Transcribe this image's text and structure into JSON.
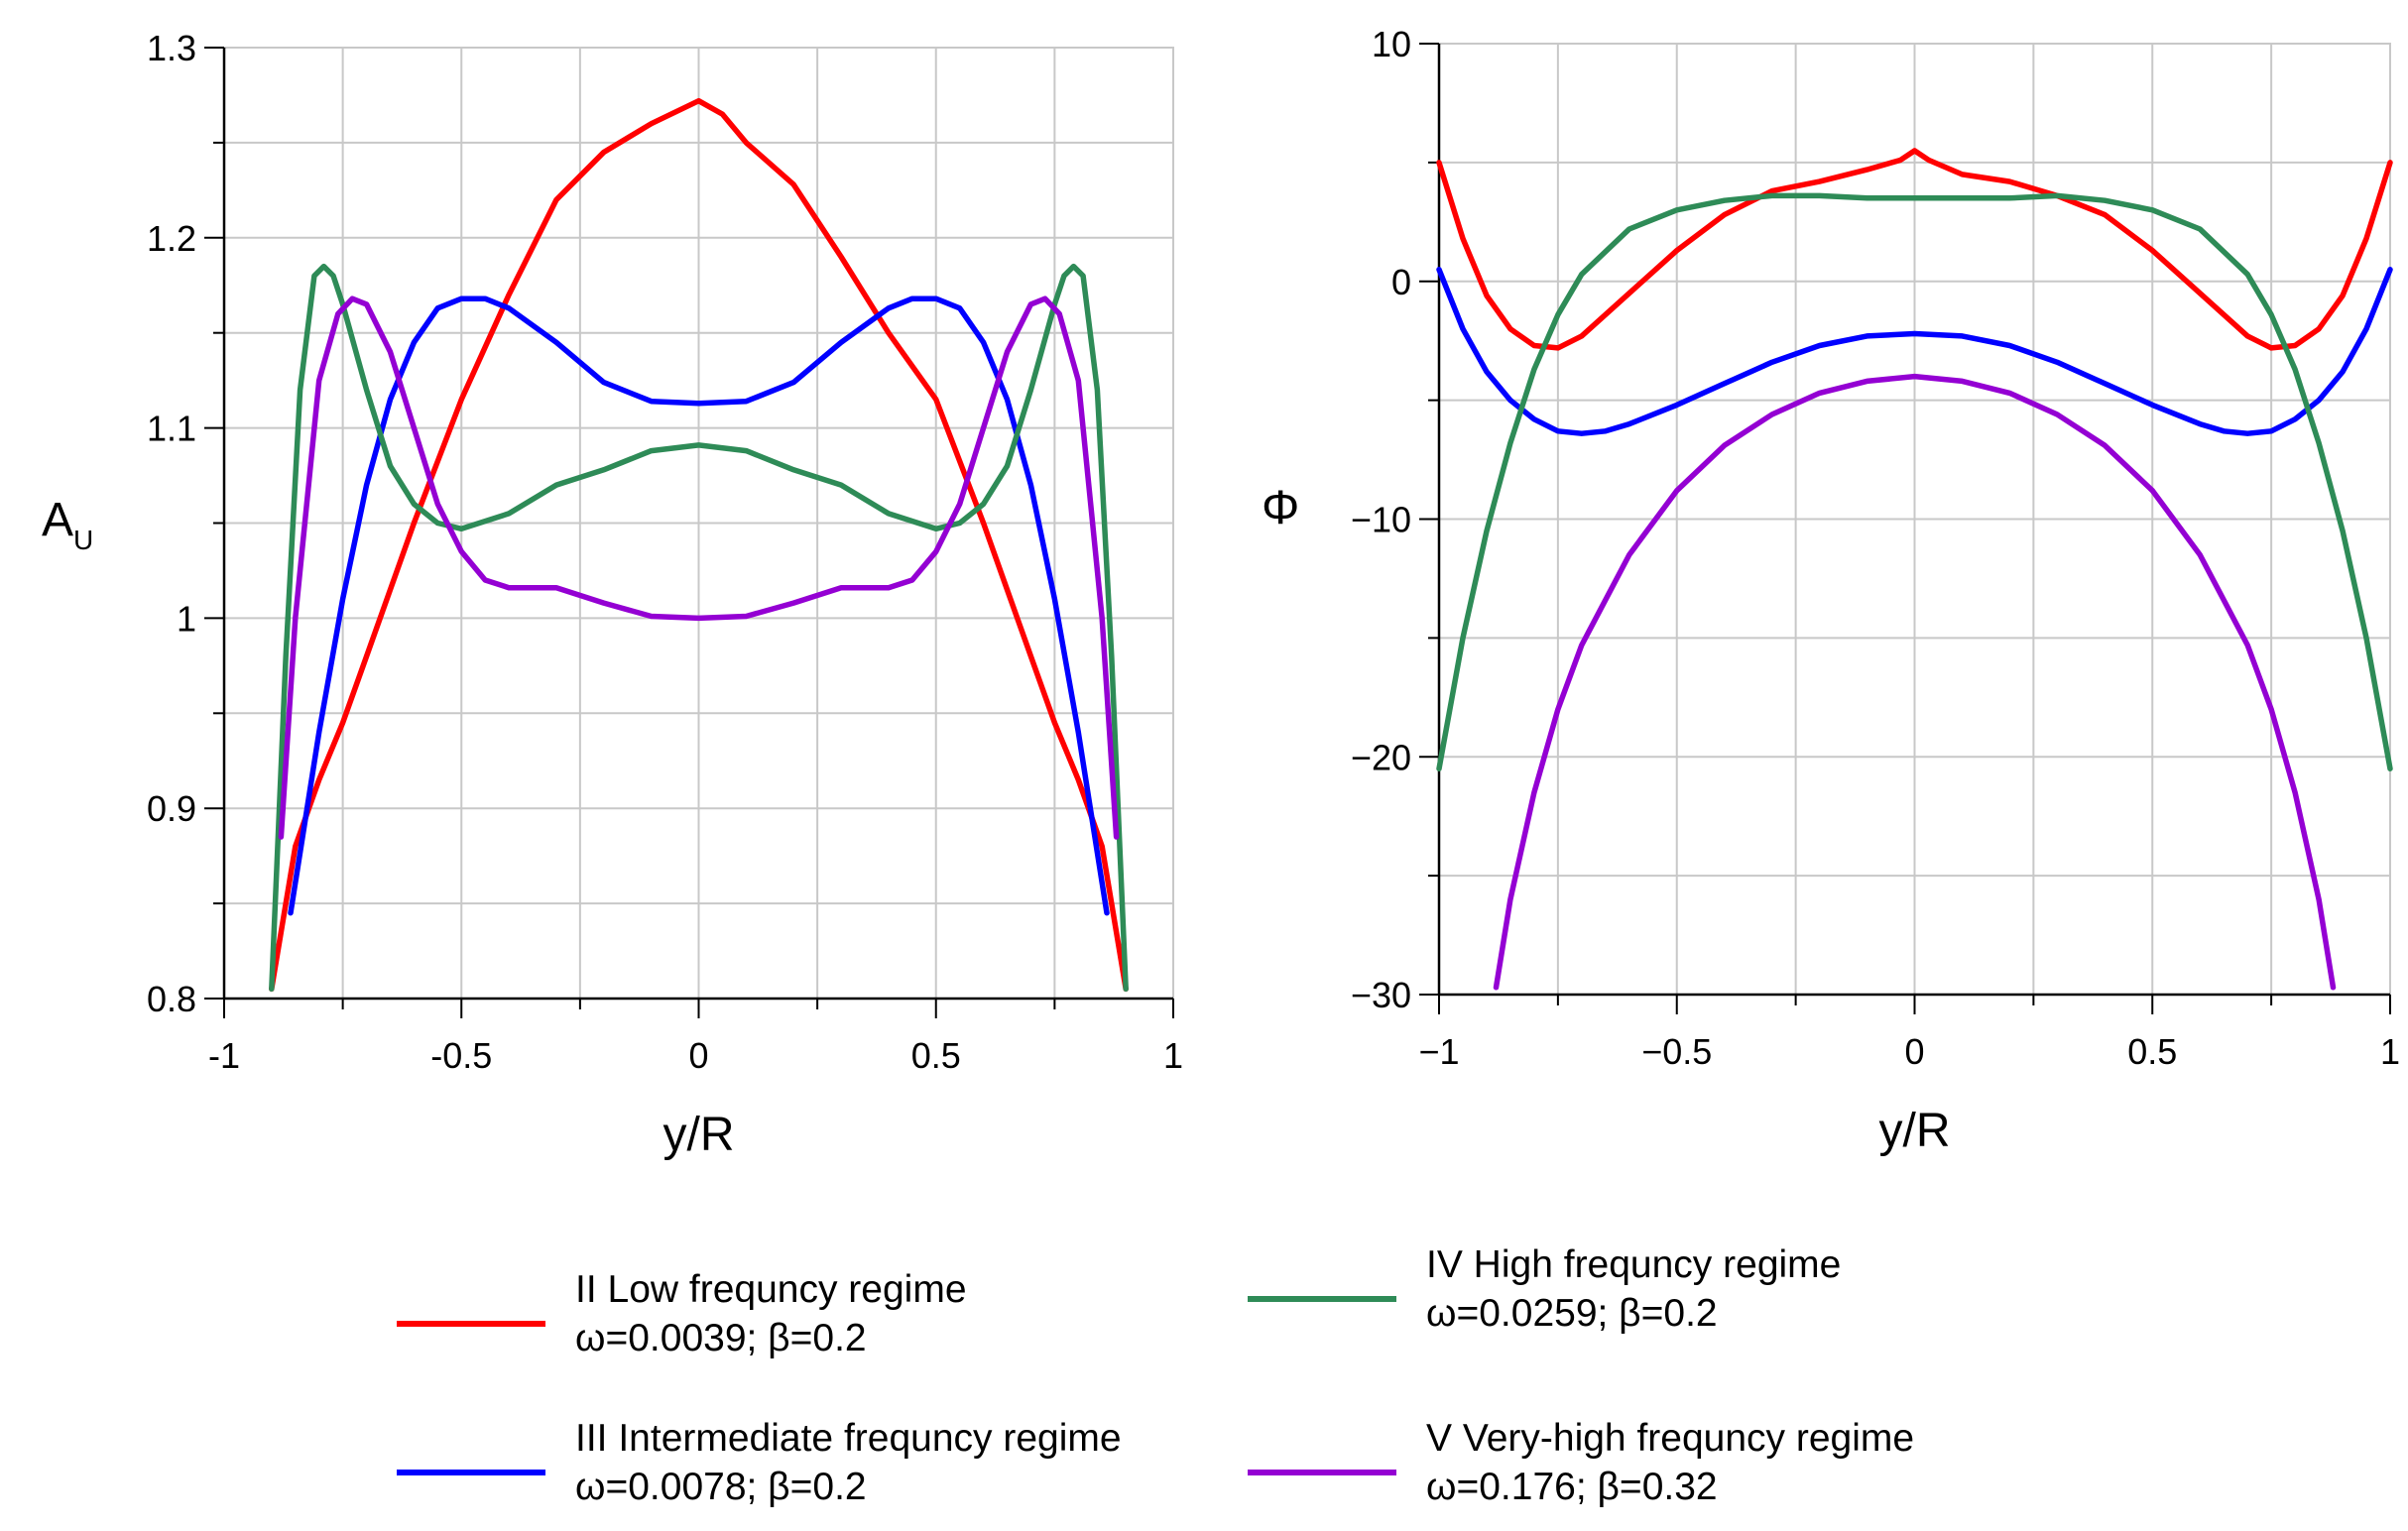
{
  "chart_data": [
    {
      "type": "line",
      "panel": "left",
      "xlabel": "y/R",
      "ylabel_main": "A",
      "ylabel_sub": "U",
      "xlim": [
        -1,
        1
      ],
      "ylim": [
        0.8,
        1.3
      ],
      "xticks": [
        -1,
        -0.5,
        0,
        0.5,
        1
      ],
      "xtick_labels": [
        "-1",
        "-0.5",
        "0",
        "0.5",
        "1"
      ],
      "xminor": [
        -0.75,
        -0.25,
        0.25,
        0.75
      ],
      "yticks": [
        0.8,
        0.9,
        1.0,
        1.1,
        1.2,
        1.3
      ],
      "ytick_labels": [
        "0.8",
        "0.9",
        "1",
        "1.1",
        "1.2",
        "1.3"
      ],
      "yminor": [
        0.85,
        0.95,
        1.05,
        1.15,
        1.25
      ],
      "grid": true,
      "series": [
        {
          "name": "II",
          "color": "#ff0000",
          "x": [
            -0.9,
            -0.85,
            -0.8,
            -0.75,
            -0.7,
            -0.6,
            -0.5,
            -0.4,
            -0.3,
            -0.2,
            -0.1,
            0,
            0.05,
            0.1,
            0.2,
            0.3,
            0.4,
            0.5,
            0.6,
            0.7,
            0.75,
            0.8,
            0.85,
            0.9
          ],
          "y": [
            0.805,
            0.88,
            0.915,
            0.945,
            0.98,
            1.05,
            1.115,
            1.17,
            1.22,
            1.245,
            1.26,
            1.272,
            1.265,
            1.25,
            1.228,
            1.19,
            1.15,
            1.115,
            1.05,
            0.98,
            0.945,
            0.915,
            0.88,
            0.805
          ]
        },
        {
          "name": "III",
          "color": "#0000ff",
          "x": [
            -0.86,
            -0.8,
            -0.75,
            -0.7,
            -0.65,
            -0.6,
            -0.55,
            -0.5,
            -0.45,
            -0.4,
            -0.3,
            -0.2,
            -0.1,
            0,
            0.1,
            0.2,
            0.3,
            0.4,
            0.45,
            0.5,
            0.55,
            0.6,
            0.65,
            0.7,
            0.75,
            0.8,
            0.86
          ],
          "y": [
            0.845,
            0.94,
            1.01,
            1.07,
            1.115,
            1.145,
            1.163,
            1.168,
            1.168,
            1.163,
            1.145,
            1.124,
            1.114,
            1.113,
            1.114,
            1.124,
            1.145,
            1.163,
            1.168,
            1.168,
            1.163,
            1.145,
            1.115,
            1.07,
            1.01,
            0.94,
            0.845
          ]
        },
        {
          "name": "IV",
          "color": "#2e8b57",
          "x": [
            -0.9,
            -0.87,
            -0.84,
            -0.81,
            -0.79,
            -0.77,
            -0.75,
            -0.7,
            -0.65,
            -0.6,
            -0.55,
            -0.5,
            -0.4,
            -0.3,
            -0.2,
            -0.1,
            0,
            0.1,
            0.2,
            0.3,
            0.4,
            0.5,
            0.55,
            0.6,
            0.65,
            0.7,
            0.75,
            0.77,
            0.79,
            0.81,
            0.84,
            0.87,
            0.9
          ],
          "y": [
            0.805,
            0.98,
            1.12,
            1.18,
            1.185,
            1.18,
            1.165,
            1.12,
            1.08,
            1.06,
            1.05,
            1.047,
            1.055,
            1.07,
            1.078,
            1.088,
            1.091,
            1.088,
            1.078,
            1.07,
            1.055,
            1.047,
            1.05,
            1.06,
            1.08,
            1.12,
            1.165,
            1.18,
            1.185,
            1.18,
            1.12,
            0.98,
            0.805
          ]
        },
        {
          "name": "V",
          "color": "#9400d3",
          "x": [
            -0.88,
            -0.85,
            -0.8,
            -0.76,
            -0.73,
            -0.7,
            -0.65,
            -0.6,
            -0.55,
            -0.5,
            -0.45,
            -0.4,
            -0.3,
            -0.2,
            -0.1,
            0,
            0.1,
            0.2,
            0.3,
            0.4,
            0.45,
            0.5,
            0.55,
            0.6,
            0.65,
            0.7,
            0.73,
            0.76,
            0.8,
            0.85,
            0.88
          ],
          "y": [
            0.885,
            1.0,
            1.125,
            1.16,
            1.168,
            1.165,
            1.14,
            1.1,
            1.06,
            1.035,
            1.02,
            1.016,
            1.016,
            1.008,
            1.001,
            1.0,
            1.001,
            1.008,
            1.016,
            1.016,
            1.02,
            1.035,
            1.06,
            1.1,
            1.14,
            1.165,
            1.168,
            1.16,
            1.125,
            1.0,
            0.885
          ]
        }
      ]
    },
    {
      "type": "line",
      "panel": "right",
      "xlabel": "y/R",
      "ylabel_main": "Φ",
      "xlim": [
        -1,
        1
      ],
      "ylim": [
        -30,
        10
      ],
      "xticks": [
        -1,
        -0.5,
        0,
        0.5,
        1
      ],
      "xtick_labels": [
        "−1",
        "−0.5",
        "0",
        "0.5",
        "1"
      ],
      "xminor": [
        -0.75,
        -0.25,
        0.25,
        0.75
      ],
      "yticks": [
        -30,
        -20,
        -10,
        0,
        10
      ],
      "ytick_labels": [
        "−30",
        "−20",
        "−10",
        "0",
        "10"
      ],
      "yminor": [
        -25,
        -15,
        -5,
        5
      ],
      "grid": true,
      "series": [
        {
          "name": "II",
          "color": "#ff0000",
          "x": [
            -1,
            -0.95,
            -0.9,
            -0.85,
            -0.8,
            -0.75,
            -0.7,
            -0.6,
            -0.5,
            -0.4,
            -0.3,
            -0.2,
            -0.1,
            -0.03,
            0,
            0.03,
            0.1,
            0.2,
            0.3,
            0.4,
            0.5,
            0.6,
            0.7,
            0.75,
            0.8,
            0.85,
            0.9,
            0.95,
            1
          ],
          "y": [
            5.0,
            1.8,
            -0.6,
            -2.0,
            -2.7,
            -2.8,
            -2.3,
            -0.5,
            1.3,
            2.8,
            3.8,
            4.2,
            4.7,
            5.1,
            5.5,
            5.1,
            4.5,
            4.2,
            3.6,
            2.8,
            1.3,
            -0.5,
            -2.3,
            -2.8,
            -2.7,
            -2.0,
            -0.6,
            1.8,
            5.0
          ]
        },
        {
          "name": "III",
          "color": "#0000ff",
          "x": [
            -1,
            -0.95,
            -0.9,
            -0.85,
            -0.8,
            -0.75,
            -0.7,
            -0.65,
            -0.6,
            -0.5,
            -0.4,
            -0.3,
            -0.2,
            -0.1,
            0,
            0.1,
            0.2,
            0.3,
            0.4,
            0.5,
            0.6,
            0.65,
            0.7,
            0.75,
            0.8,
            0.85,
            0.9,
            0.95,
            1
          ],
          "y": [
            0.5,
            -2.0,
            -3.8,
            -5.0,
            -5.8,
            -6.3,
            -6.4,
            -6.3,
            -6.0,
            -5.2,
            -4.3,
            -3.4,
            -2.7,
            -2.3,
            -2.2,
            -2.3,
            -2.7,
            -3.4,
            -4.3,
            -5.2,
            -6.0,
            -6.3,
            -6.4,
            -6.3,
            -5.8,
            -5.0,
            -3.8,
            -2.0,
            0.5
          ]
        },
        {
          "name": "IV",
          "color": "#2e8b57",
          "x": [
            -1,
            -0.95,
            -0.9,
            -0.85,
            -0.8,
            -0.75,
            -0.7,
            -0.6,
            -0.5,
            -0.4,
            -0.3,
            -0.2,
            -0.1,
            0,
            0.1,
            0.2,
            0.3,
            0.4,
            0.5,
            0.6,
            0.7,
            0.75,
            0.8,
            0.85,
            0.9,
            0.95,
            1
          ],
          "y": [
            -20.5,
            -15.0,
            -10.5,
            -6.8,
            -3.7,
            -1.4,
            0.3,
            2.2,
            3.0,
            3.4,
            3.6,
            3.6,
            3.5,
            3.5,
            3.5,
            3.5,
            3.6,
            3.4,
            3.0,
            2.2,
            0.3,
            -1.4,
            -3.7,
            -6.8,
            -10.5,
            -15.0,
            -20.5
          ]
        },
        {
          "name": "V",
          "color": "#9400d3",
          "x": [
            -0.88,
            -0.85,
            -0.8,
            -0.75,
            -0.7,
            -0.6,
            -0.5,
            -0.4,
            -0.3,
            -0.2,
            -0.1,
            0,
            0.1,
            0.2,
            0.3,
            0.4,
            0.5,
            0.6,
            0.7,
            0.75,
            0.8,
            0.85,
            0.88
          ],
          "y": [
            -29.7,
            -26.0,
            -21.5,
            -18.0,
            -15.3,
            -11.5,
            -8.8,
            -6.9,
            -5.6,
            -4.7,
            -4.2,
            -4.0,
            -4.2,
            -4.7,
            -5.6,
            -6.9,
            -8.8,
            -11.5,
            -15.3,
            -18.0,
            -21.5,
            -26.0,
            -29.7
          ]
        }
      ]
    }
  ],
  "legend": {
    "placement": "bottom",
    "entries": [
      {
        "color": "#ff0000",
        "line1": "II Low frequncy regime",
        "line2": "ω=0.0039; β=0.2"
      },
      {
        "color": "#2e8b57",
        "line1": "IV High frequncy regime",
        "line2": "ω=0.0259; β=0.2"
      },
      {
        "color": "#0000ff",
        "line1": "III Intermediate frequncy regime",
        "line2": "ω=0.0078; β=0.2"
      },
      {
        "color": "#9400d3",
        "line1": "V Very-high frequncy regime",
        "line2": "ω=0.176; β=0.32"
      }
    ]
  }
}
